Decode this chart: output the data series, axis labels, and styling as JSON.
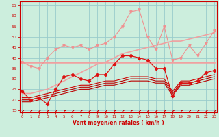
{
  "x": [
    0,
    1,
    2,
    3,
    4,
    5,
    6,
    7,
    8,
    9,
    10,
    11,
    12,
    13,
    14,
    15,
    16,
    17,
    18,
    19,
    20,
    21,
    22,
    23
  ],
  "series": [
    {
      "name": "line1_light_pink_markers",
      "color": "#f09090",
      "linewidth": 0.8,
      "marker": "v",
      "markersize": 2.5,
      "y": [
        38,
        36,
        35,
        40,
        44,
        46,
        45,
        46,
        44,
        46,
        47,
        50,
        55,
        62,
        63,
        50,
        44,
        55,
        39,
        40,
        46,
        41,
        47,
        53
      ]
    },
    {
      "name": "line2_pink_flat",
      "color": "#f0a0a0",
      "linewidth": 1.8,
      "marker": null,
      "markersize": 0,
      "y": [
        38,
        38,
        38,
        38,
        38,
        38,
        38,
        38,
        38,
        38,
        38,
        38,
        38,
        38,
        38,
        38,
        38,
        38,
        38,
        38,
        38,
        38,
        38,
        38
      ]
    },
    {
      "name": "line3_pink_rising",
      "color": "#f0a0a0",
      "linewidth": 1.2,
      "marker": null,
      "markersize": 0,
      "y": [
        23,
        23,
        24,
        25,
        27,
        29,
        31,
        33,
        35,
        37,
        38,
        40,
        42,
        43,
        44,
        45,
        46,
        47,
        48,
        48,
        49,
        50,
        51,
        52
      ]
    },
    {
      "name": "line4_red_diamond",
      "color": "#dd1111",
      "linewidth": 0.9,
      "marker": "D",
      "markersize": 2.2,
      "y": [
        24,
        20,
        21,
        18,
        25,
        31,
        32,
        30,
        29,
        32,
        32,
        37,
        41,
        41,
        40,
        39,
        35,
        35,
        22,
        28,
        28,
        29,
        33,
        34
      ]
    },
    {
      "name": "line5_dark_red1",
      "color": "#bb0000",
      "linewidth": 0.8,
      "marker": null,
      "markersize": 0,
      "y": [
        19,
        19,
        20,
        21,
        22,
        23,
        24,
        25,
        25,
        26,
        27,
        27,
        28,
        29,
        29,
        29,
        28,
        28,
        22,
        27,
        27,
        28,
        29,
        30
      ]
    },
    {
      "name": "line6_dark_red2",
      "color": "#bb0000",
      "linewidth": 0.8,
      "marker": null,
      "markersize": 0,
      "y": [
        20,
        20,
        21,
        22,
        23,
        24,
        25,
        26,
        26,
        27,
        28,
        28,
        29,
        30,
        30,
        30,
        29,
        29,
        23,
        28,
        28,
        29,
        30,
        31
      ]
    },
    {
      "name": "line7_dark_red3",
      "color": "#cc0000",
      "linewidth": 0.8,
      "marker": null,
      "markersize": 0,
      "y": [
        21,
        21,
        22,
        23,
        24,
        25,
        26,
        27,
        27,
        28,
        29,
        29,
        30,
        31,
        31,
        31,
        30,
        30,
        24,
        29,
        29,
        30,
        31,
        32
      ]
    }
  ],
  "xlim": [
    -0.3,
    23.3
  ],
  "ylim": [
    14,
    67
  ],
  "yticks": [
    15,
    20,
    25,
    30,
    35,
    40,
    45,
    50,
    55,
    60,
    65
  ],
  "xticks": [
    0,
    1,
    2,
    3,
    4,
    5,
    6,
    7,
    8,
    9,
    10,
    11,
    12,
    13,
    14,
    15,
    16,
    17,
    18,
    19,
    20,
    21,
    22,
    23
  ],
  "xlabel": "Vent moyen/en rafales ( km/h )",
  "background_color": "#cceedd",
  "grid_color": "#99cccc",
  "axis_color": "#cc0000",
  "label_color": "#cc0000",
  "tick_color": "#cc0000"
}
